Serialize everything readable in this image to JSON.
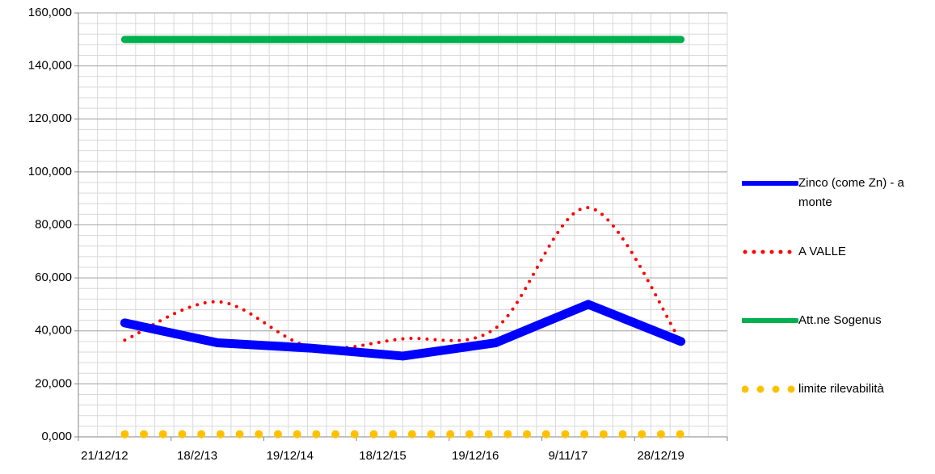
{
  "chart_data": {
    "type": "line",
    "categories": [
      "21/12/12",
      "18/2/13",
      "19/12/14",
      "18/12/15",
      "19/12/16",
      "9/11/17",
      "28/12/19"
    ],
    "series": [
      {
        "name": "Zinco (come Zn) - a monte",
        "color": "#0000ff",
        "style": "solid",
        "values": [
          43,
          35.5,
          33.5,
          30.5,
          35.5,
          50,
          36
        ]
      },
      {
        "name": "A VALLE",
        "color": "#ff0000",
        "style": "dotted",
        "smooth": true,
        "values": [
          36.5,
          51,
          34,
          37,
          41,
          86.5,
          36
        ]
      },
      {
        "name": "Att.ne Sogenus",
        "color": "#00b050",
        "style": "solid",
        "values": [
          150,
          150,
          150,
          150,
          150,
          150,
          150
        ]
      },
      {
        "name": "limite rilevabilità",
        "color": "#ffc000",
        "style": "dotted",
        "values": [
          1,
          1,
          1,
          1,
          1,
          1,
          1
        ]
      }
    ],
    "ylim": [
      0,
      160
    ],
    "yticks": [
      {
        "value": 0,
        "label": "0,000"
      },
      {
        "value": 20,
        "label": "20,000"
      },
      {
        "value": 40,
        "label": "40,000"
      },
      {
        "value": 60,
        "label": "60,000"
      },
      {
        "value": 80,
        "label": "80,000"
      },
      {
        "value": 100,
        "label": "100,000"
      },
      {
        "value": 120,
        "label": "120,000"
      },
      {
        "value": 140,
        "label": "140,000"
      },
      {
        "value": 160,
        "label": "160,000"
      }
    ],
    "grid": true,
    "legend": "right"
  }
}
